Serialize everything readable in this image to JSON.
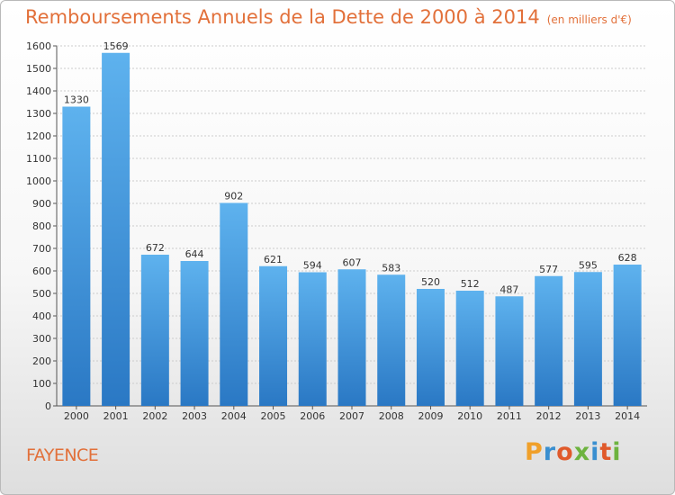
{
  "chart_data": {
    "type": "bar",
    "title": "Remboursements Annuels de la Dette de 2000 à 2014",
    "subtitle": "(en milliers d'€)",
    "categories": [
      "2000",
      "2001",
      "2002",
      "2003",
      "2004",
      "2005",
      "2006",
      "2007",
      "2008",
      "2009",
      "2010",
      "2011",
      "2012",
      "2013",
      "2014"
    ],
    "values": [
      1330,
      1569,
      672,
      644,
      902,
      621,
      594,
      607,
      583,
      520,
      512,
      487,
      577,
      595,
      628
    ],
    "ylim": [
      0,
      1600
    ],
    "yticks": [
      0,
      100,
      200,
      300,
      400,
      500,
      600,
      700,
      800,
      900,
      1000,
      1100,
      1200,
      1300,
      1400,
      1500,
      1600
    ],
    "grid": true,
    "bar_color": "#3d8fd6",
    "grid_color": "#cccccc"
  },
  "footer": {
    "city": "FAYENCE",
    "logo": [
      {
        "char": "P",
        "color": "#f0a02a"
      },
      {
        "char": "r",
        "color": "#3a8fd0"
      },
      {
        "char": "o",
        "color": "#e05a2b"
      },
      {
        "char": "x",
        "color": "#6db33f"
      },
      {
        "char": "i",
        "color": "#3a8fd0"
      },
      {
        "char": "t",
        "color": "#e05a2b"
      },
      {
        "char": "i",
        "color": "#6db33f"
      }
    ]
  }
}
